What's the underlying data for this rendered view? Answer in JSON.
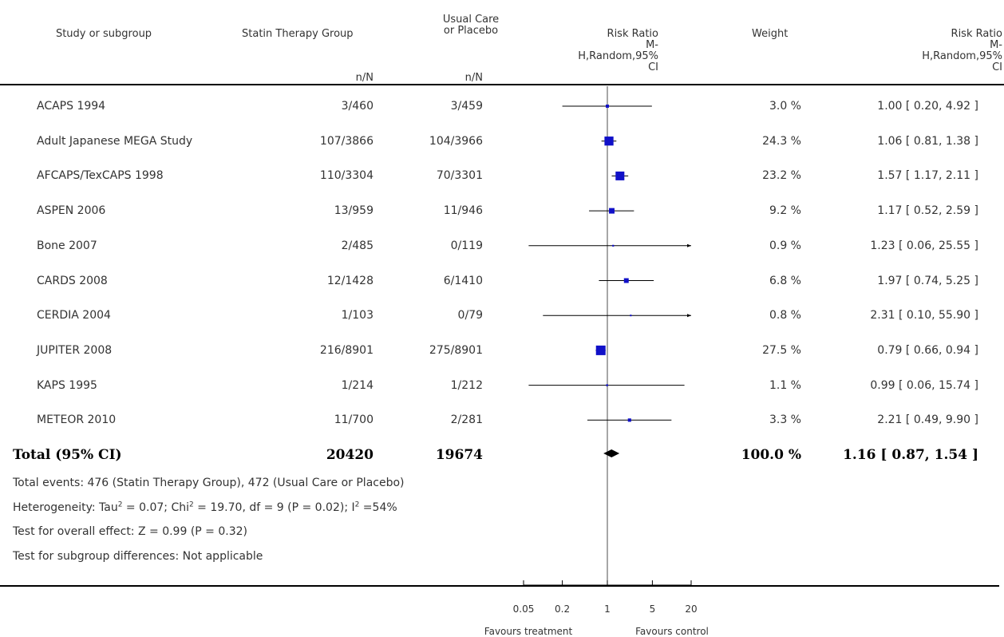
{
  "columns": {
    "study": "Study or subgroup",
    "treatment": "Statin Therapy Group",
    "control_line1": "Usual Care",
    "control_line2": "or Placebo",
    "nN": "n/N",
    "rr_line1": "Risk Ratio",
    "rr_line2": "M-",
    "rr_line3": "H,Random,95%",
    "rr_line4": "CI",
    "weight": "Weight"
  },
  "chart_data": {
    "type": "forest",
    "scale": "log",
    "xlim": [
      0.05,
      20
    ],
    "xticks": [
      {
        "value": 0.05,
        "label": "0.05"
      },
      {
        "value": 0.2,
        "label": "0.2"
      },
      {
        "value": 1,
        "label": "1"
      },
      {
        "value": 5,
        "label": "5"
      },
      {
        "value": 20,
        "label": "20"
      }
    ],
    "xlabel_left": "Favours treatment",
    "xlabel_right": "Favours control",
    "studies": [
      {
        "name": "ACAPS 1994",
        "treatment": "3/460",
        "control": "3/459",
        "rr": 1.0,
        "lo": 0.2,
        "hi": 4.92,
        "weight": 3.0,
        "weight_label": "3.0 %",
        "ci_label": "1.00 [ 0.20, 4.92 ]"
      },
      {
        "name": "Adult Japanese MEGA Study",
        "treatment": "107/3866",
        "control": "104/3966",
        "rr": 1.06,
        "lo": 0.81,
        "hi": 1.38,
        "weight": 24.3,
        "weight_label": "24.3 %",
        "ci_label": "1.06 [ 0.81, 1.38 ]"
      },
      {
        "name": "AFCAPS/TexCAPS 1998",
        "treatment": "110/3304",
        "control": "70/3301",
        "rr": 1.57,
        "lo": 1.17,
        "hi": 2.11,
        "weight": 23.2,
        "weight_label": "23.2 %",
        "ci_label": "1.57 [ 1.17, 2.11 ]"
      },
      {
        "name": "ASPEN 2006",
        "treatment": "13/959",
        "control": "11/946",
        "rr": 1.17,
        "lo": 0.52,
        "hi": 2.59,
        "weight": 9.2,
        "weight_label": "9.2 %",
        "ci_label": "1.17 [ 0.52, 2.59 ]"
      },
      {
        "name": "Bone 2007",
        "treatment": "2/485",
        "control": "0/119",
        "rr": 1.23,
        "lo": 0.06,
        "hi": 25.55,
        "weight": 0.9,
        "weight_label": "0.9 %",
        "ci_label": "1.23 [ 0.06, 25.55 ]"
      },
      {
        "name": "CARDS 2008",
        "treatment": "12/1428",
        "control": "6/1410",
        "rr": 1.97,
        "lo": 0.74,
        "hi": 5.25,
        "weight": 6.8,
        "weight_label": "6.8 %",
        "ci_label": "1.97 [ 0.74, 5.25 ]"
      },
      {
        "name": "CERDIA 2004",
        "treatment": "1/103",
        "control": "0/79",
        "rr": 2.31,
        "lo": 0.1,
        "hi": 55.9,
        "weight": 0.8,
        "weight_label": "0.8 %",
        "ci_label": "2.31 [ 0.10, 55.90 ]"
      },
      {
        "name": "JUPITER 2008",
        "treatment": "216/8901",
        "control": "275/8901",
        "rr": 0.79,
        "lo": 0.66,
        "hi": 0.94,
        "weight": 27.5,
        "weight_label": "27.5 %",
        "ci_label": "0.79 [ 0.66, 0.94 ]"
      },
      {
        "name": "KAPS 1995",
        "treatment": "1/214",
        "control": "1/212",
        "rr": 0.99,
        "lo": 0.06,
        "hi": 15.74,
        "weight": 1.1,
        "weight_label": "1.1 %",
        "ci_label": "0.99 [ 0.06, 15.74 ]"
      },
      {
        "name": "METEOR 2010",
        "treatment": "11/700",
        "control": "2/281",
        "rr": 2.21,
        "lo": 0.49,
        "hi": 9.9,
        "weight": 3.3,
        "weight_label": "3.3 %",
        "ci_label": "2.21 [ 0.49, 9.90 ]"
      }
    ],
    "total": {
      "name": "Total (95% CI)",
      "treatment": "20420",
      "control": "19674",
      "rr": 1.16,
      "lo": 0.87,
      "hi": 1.54,
      "weight_label": "100.0 %",
      "ci_label": "1.16 [ 0.87, 1.54 ]"
    }
  },
  "footer": {
    "events": "Total events: 476 (Statin Therapy Group), 472 (Usual Care or Placebo)",
    "het_a": "Heterogeneity: Tau",
    "het_sup1": "2",
    "het_b": " = 0.07; Chi",
    "het_sup2": "2",
    "het_c": " = 19.70, df = 9 (P = 0.02); I",
    "het_sup3": "2",
    "het_d": " =54%",
    "overall": "Test for overall effect: Z = 0.99 (P = 0.32)",
    "subgroup": "Test for subgroup differences: Not applicable"
  },
  "colors": {
    "marker": "#1010c8",
    "line": "#000000",
    "text": "#333333"
  }
}
